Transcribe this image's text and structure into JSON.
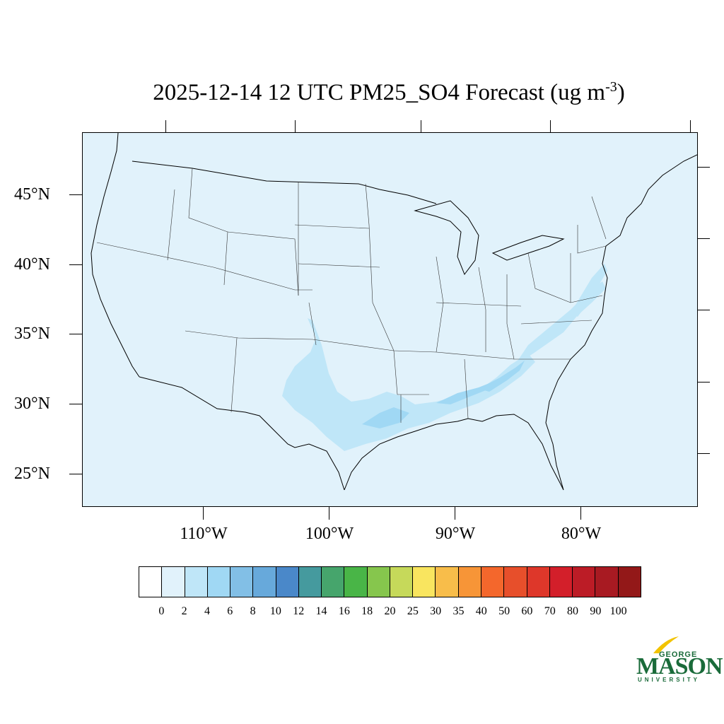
{
  "title": {
    "main": "2025-12-14 12 UTC PM25_SO4 Forecast (ug m",
    "exponent": "-3",
    "suffix": ")"
  },
  "map": {
    "background_color": "#e1f2fb",
    "lat_labels": [
      "45°N",
      "40°N",
      "35°N",
      "30°N",
      "25°N"
    ],
    "lon_labels": [
      "110°W",
      "100°W",
      "90°W",
      "80°W"
    ]
  },
  "colorbar": {
    "colors": [
      "#ffffff",
      "#e1f2fb",
      "#bfe6f8",
      "#a0d8f4",
      "#82bfe6",
      "#67a9db",
      "#4a88c9",
      "#459a9e",
      "#46a56c",
      "#49b547",
      "#86c64d",
      "#c6d95a",
      "#f9e55f",
      "#f8bd4a",
      "#f79537",
      "#f4672c",
      "#e74f2b",
      "#de372a",
      "#d31f2a",
      "#bc1c26",
      "#a81a22",
      "#931818"
    ],
    "labels": [
      "0",
      "2",
      "4",
      "6",
      "8",
      "10",
      "12",
      "14",
      "16",
      "18",
      "20",
      "25",
      "30",
      "35",
      "40",
      "50",
      "60",
      "70",
      "80",
      "90",
      "100"
    ]
  },
  "logo": {
    "top": "GEORGE",
    "middle": "MASON",
    "bottom": "UNIVERSITY",
    "color": "#1a6b3a",
    "accent": "#f2c300"
  }
}
